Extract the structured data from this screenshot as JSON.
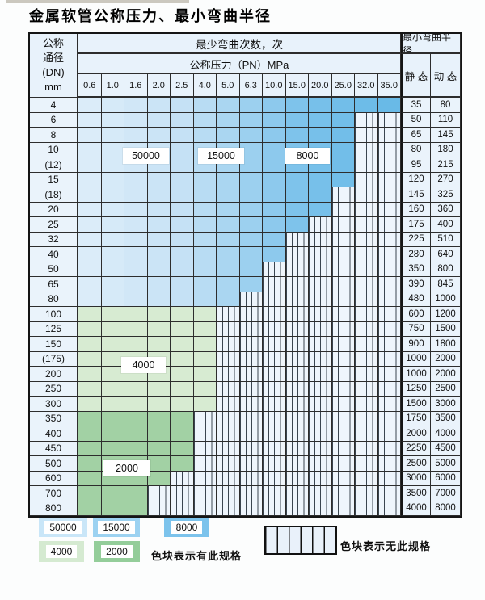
{
  "title": "金属软管公称压力、最小弯曲半径",
  "header": {
    "dn_lines": [
      "公称",
      "通径",
      "(DN)",
      "mm"
    ],
    "bend_cycles": "最少弯曲次数，次",
    "pn": "公称压力（PN）MPa",
    "radius": "最小弯曲半径",
    "static": "静 态",
    "dynamic": "动 态"
  },
  "table": {
    "pressures": [
      "0.6",
      "1.0",
      "1.6",
      "2.0",
      "2.5",
      "4.0",
      "5.0",
      "6.3",
      "10.0",
      "15.0",
      "20.0",
      "25.0",
      "32.0",
      "35.0"
    ],
    "zone_legend": {
      "blue": [
        "50000",
        "15000",
        "8000"
      ],
      "green_light": "4000",
      "green_dark": "2000",
      "striped": "no spec"
    },
    "rows": [
      {
        "dn": "4",
        "static": "35",
        "dynamic": "80",
        "colored": 14,
        "max_pn": "35.0",
        "zone": "blue"
      },
      {
        "dn": "6",
        "static": "50",
        "dynamic": "110",
        "colored": 12,
        "max_pn": "25.0",
        "zone": "blue"
      },
      {
        "dn": "8",
        "static": "65",
        "dynamic": "145",
        "colored": 12,
        "max_pn": "25.0",
        "zone": "blue"
      },
      {
        "dn": "10",
        "static": "80",
        "dynamic": "180",
        "colored": 12,
        "max_pn": "25.0",
        "zone": "blue"
      },
      {
        "dn": "(12)",
        "static": "95",
        "dynamic": "215",
        "colored": 12,
        "max_pn": "25.0",
        "zone": "blue"
      },
      {
        "dn": "15",
        "static": "120",
        "dynamic": "270",
        "colored": 12,
        "max_pn": "25.0",
        "zone": "blue"
      },
      {
        "dn": "(18)",
        "static": "145",
        "dynamic": "325",
        "colored": 11,
        "max_pn": "20.0",
        "zone": "blue"
      },
      {
        "dn": "20",
        "static": "160",
        "dynamic": "360",
        "colored": 11,
        "max_pn": "20.0",
        "zone": "blue"
      },
      {
        "dn": "25",
        "static": "175",
        "dynamic": "400",
        "colored": 10,
        "max_pn": "15.0",
        "zone": "blue"
      },
      {
        "dn": "32",
        "static": "225",
        "dynamic": "510",
        "colored": 9,
        "max_pn": "10.0",
        "zone": "blue"
      },
      {
        "dn": "40",
        "static": "280",
        "dynamic": "640",
        "colored": 9,
        "max_pn": "10.0",
        "zone": "blue"
      },
      {
        "dn": "50",
        "static": "350",
        "dynamic": "800",
        "colored": 8,
        "max_pn": "6.3",
        "zone": "blue"
      },
      {
        "dn": "65",
        "static": "390",
        "dynamic": "845",
        "colored": 8,
        "max_pn": "6.3",
        "zone": "blue"
      },
      {
        "dn": "80",
        "static": "480",
        "dynamic": "1000",
        "colored": 7,
        "max_pn": "5.0",
        "zone": "blue"
      },
      {
        "dn": "100",
        "static": "600",
        "dynamic": "1200",
        "colored": 6,
        "max_pn": "4.0",
        "zone": "green_light"
      },
      {
        "dn": "125",
        "static": "750",
        "dynamic": "1500",
        "colored": 6,
        "max_pn": "4.0",
        "zone": "green_light"
      },
      {
        "dn": "150",
        "static": "900",
        "dynamic": "1800",
        "colored": 6,
        "max_pn": "4.0",
        "zone": "green_light"
      },
      {
        "dn": "(175)",
        "static": "1000",
        "dynamic": "2000",
        "colored": 6,
        "max_pn": "4.0",
        "zone": "green_light"
      },
      {
        "dn": "200",
        "static": "1000",
        "dynamic": "2000",
        "colored": 6,
        "max_pn": "4.0",
        "zone": "green_light"
      },
      {
        "dn": "250",
        "static": "1250",
        "dynamic": "2500",
        "colored": 6,
        "max_pn": "4.0",
        "zone": "green_light"
      },
      {
        "dn": "300",
        "static": "1500",
        "dynamic": "3000",
        "colored": 6,
        "max_pn": "4.0",
        "zone": "green_light"
      },
      {
        "dn": "350",
        "static": "1750",
        "dynamic": "3500",
        "colored": 5,
        "max_pn": "2.5",
        "zone": "green_dark"
      },
      {
        "dn": "400",
        "static": "2000",
        "dynamic": "4000",
        "colored": 5,
        "max_pn": "2.5",
        "zone": "green_dark"
      },
      {
        "dn": "450",
        "static": "2250",
        "dynamic": "4500",
        "colored": 5,
        "max_pn": "2.5",
        "zone": "green_dark"
      },
      {
        "dn": "500",
        "static": "2500",
        "dynamic": "5000",
        "colored": 5,
        "max_pn": "2.5",
        "zone": "green_dark"
      },
      {
        "dn": "600",
        "static": "3000",
        "dynamic": "6000",
        "colored": 4,
        "max_pn": "2.0",
        "zone": "green_dark"
      },
      {
        "dn": "700",
        "static": "3500",
        "dynamic": "7000",
        "colored": 3,
        "max_pn": "1.6",
        "zone": "green_dark"
      },
      {
        "dn": "800",
        "static": "4000",
        "dynamic": "8000",
        "colored": 3,
        "max_pn": "1.6",
        "zone": "green_dark"
      }
    ]
  },
  "cycle_labels": [
    {
      "text": "50000"
    },
    {
      "text": "15000"
    },
    {
      "text": "8000"
    },
    {
      "text": "4000"
    },
    {
      "text": "2000"
    }
  ],
  "legend": {
    "items": [
      {
        "label": "50000",
        "color": "#c9e6f8"
      },
      {
        "label": "15000",
        "color": "#9cd2f1"
      },
      {
        "label": "8000",
        "color": "#7cc3ec"
      },
      {
        "label": "4000",
        "color": "#d5ead1"
      },
      {
        "label": "2000",
        "color": "#94cd9a"
      }
    ],
    "available_text": "色块表示有此规格",
    "unavailable_text": "色块表示无此规格"
  },
  "colors": {
    "blue_cols": [
      "#dbecf9",
      "#d6eaf8",
      "#d1e7f7",
      "#cbe4f6",
      "#c5e1f5",
      "#b8dcf3",
      "#aad6f1",
      "#9cd0ef",
      "#8dc9ed",
      "#7ec3eb",
      "#77c0ea",
      "#72bee9",
      "#6dbce8",
      "#69bae7"
    ],
    "green_light": "#d7ebd2",
    "green_dark": "#a2d1a4",
    "header_bg": "#e8f2fb",
    "grid_line": "#2d2d2d"
  }
}
